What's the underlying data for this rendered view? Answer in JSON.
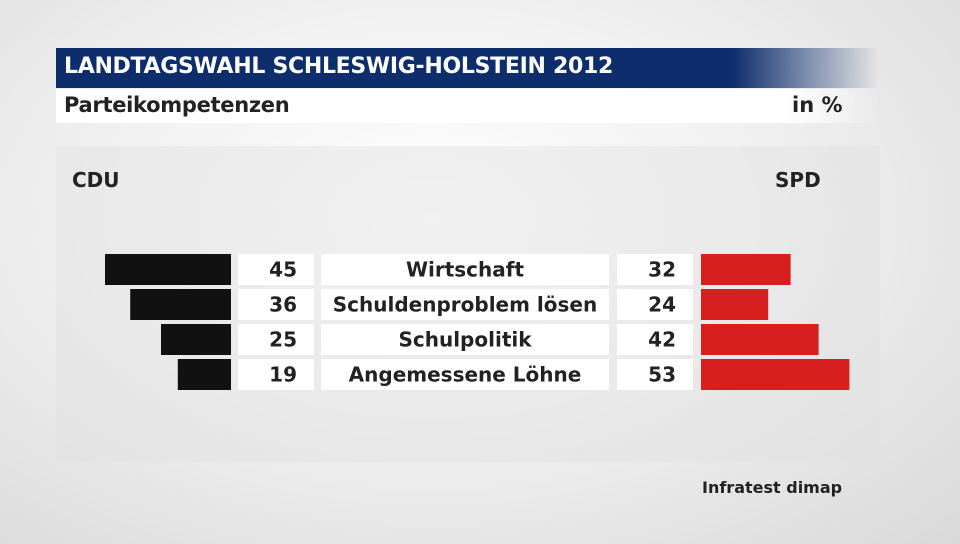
{
  "header": {
    "title": "LANDTAGSWAHL SCHLESWIG-HOLSTEIN 2012",
    "subtitle": "Parteikompetenzen",
    "unit": "in %"
  },
  "source": "Infratest dimap",
  "chart_data": {
    "type": "bar",
    "orientation": "horizontal-butterfly",
    "categories": [
      "Wirtschaft",
      "Schuldenproblem lösen",
      "Schulpolitik",
      "Angemessene Löhne"
    ],
    "series": [
      {
        "name": "CDU",
        "values": [
          45,
          36,
          25,
          19
        ],
        "color": "#111111",
        "side": "left"
      },
      {
        "name": "SPD",
        "values": [
          32,
          24,
          42,
          53
        ],
        "color": "#d81f1f",
        "side": "right"
      }
    ],
    "grid": false
  }
}
